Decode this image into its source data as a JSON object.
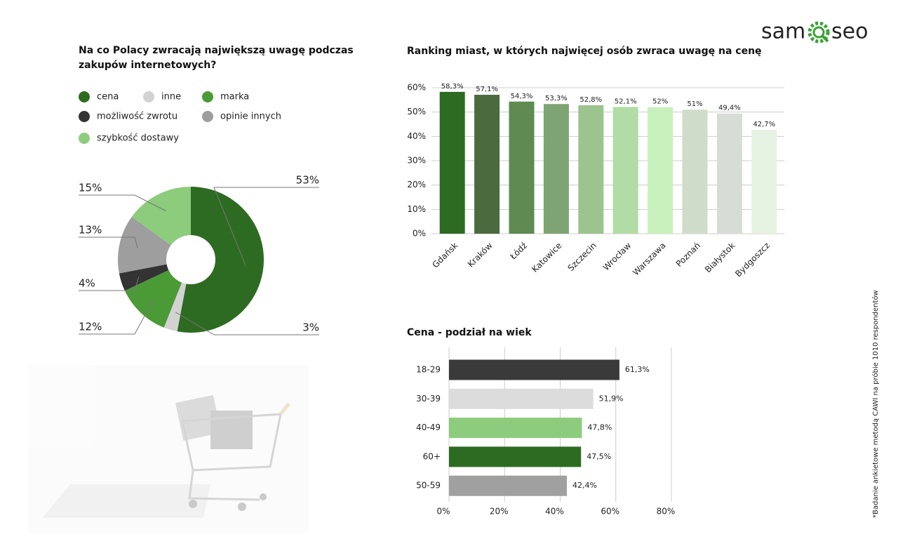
{
  "logo": {
    "left": "sam",
    "right": "seo"
  },
  "footnote": "*Badanie ankietowe metodą CAWI na próbie 1010 respondentów",
  "chart_data": [
    {
      "type": "pie",
      "title": "Na co Polacy zwracają największą uwagę podczas zakupów internetowych?",
      "categories": [
        "cena",
        "inne",
        "marka",
        "możliwość zwrotu",
        "opinie innych",
        "szybkość dostawy"
      ],
      "values": [
        53,
        3,
        12,
        4,
        13,
        15
      ],
      "value_labels": [
        "53%",
        "3%",
        "12%",
        "4%",
        "13%",
        "15%"
      ],
      "colors": [
        "#2e6b22",
        "#d2d2d2",
        "#4a9a36",
        "#333333",
        "#9e9e9e",
        "#8ccc7c"
      ]
    },
    {
      "type": "bar",
      "title": "Ranking miast, w których najwięcej osób zwraca uwagę na cenę",
      "categories": [
        "Gdańsk",
        "Kraków",
        "Łódź",
        "Katowice",
        "Szczecin",
        "Wrocław",
        "Warszawa",
        "Poznań",
        "Białystok",
        "Bydgoszcz"
      ],
      "values": [
        58.3,
        57.1,
        54.3,
        53.3,
        52.8,
        52.1,
        52,
        51,
        49.4,
        42.7
      ],
      "value_labels": [
        "58,3%",
        "57,1%",
        "54,3%",
        "53,3%",
        "52,8%",
        "52,1%",
        "52%",
        "51%",
        "49,4%",
        "42,7%"
      ],
      "colors": [
        "#2e6b22",
        "#4a6b3e",
        "#5f8a52",
        "#7fa473",
        "#9cc48e",
        "#b2dca6",
        "#c8f0bc",
        "#d0dcca",
        "#d8dcd6",
        "#e6f2e2"
      ],
      "ylim": [
        0,
        60
      ],
      "yticks": [
        {
          "value": 0,
          "label": "0%"
        },
        {
          "value": 10,
          "label": "10%"
        },
        {
          "value": 20,
          "label": "20%"
        },
        {
          "value": 30,
          "label": "30%"
        },
        {
          "value": 40,
          "label": "40%"
        },
        {
          "value": 50,
          "label": "50%"
        },
        {
          "value": 60,
          "label": "60%"
        }
      ],
      "grid": true
    },
    {
      "type": "hbar",
      "title": "Cena - podział na wiek",
      "categories": [
        "18-29",
        "30-39",
        "40-49",
        "60+",
        "50-59"
      ],
      "values": [
        61.3,
        51.9,
        47.8,
        47.5,
        42.4
      ],
      "value_labels": [
        "61,3%",
        "51,9%",
        "47,8%",
        "47,5%",
        "42,4%"
      ],
      "colors": [
        "#3a3a3a",
        "#dcdcdc",
        "#8ccc7c",
        "#2e6b22",
        "#a0a0a0"
      ],
      "xlim": [
        0,
        80
      ],
      "xticks": [
        {
          "value": 0,
          "label": "0%"
        },
        {
          "value": 20,
          "label": "20%"
        },
        {
          "value": 40,
          "label": "40%"
        },
        {
          "value": 60,
          "label": "60%"
        },
        {
          "value": 80,
          "label": "80%"
        }
      ],
      "grid": true
    }
  ]
}
